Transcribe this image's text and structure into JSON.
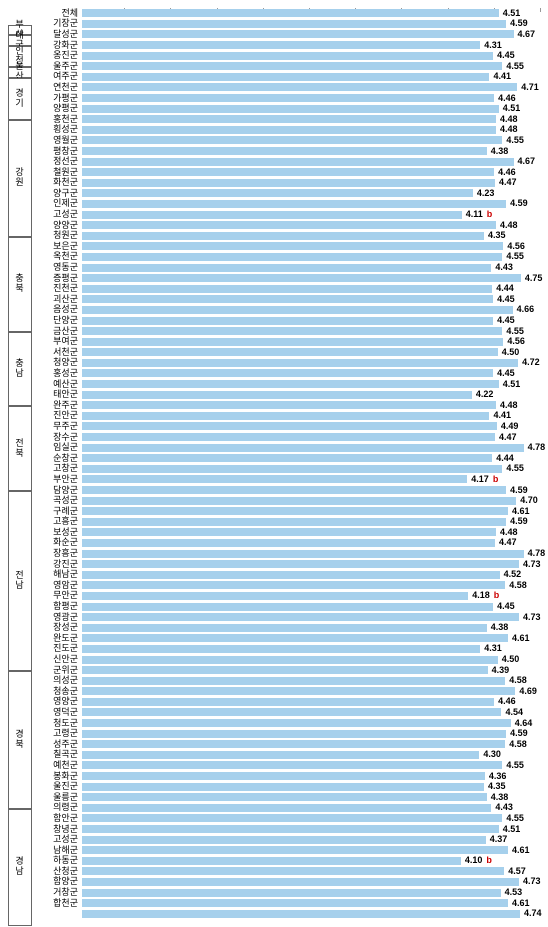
{
  "chart": {
    "type": "bar",
    "xmin": 0,
    "xmax": 5.0,
    "bar_color": "#a6d0ec",
    "value_color": "#000000",
    "marker_a_color": "#cc0000",
    "marker_b_color": "#cc0000",
    "background_color": "#ffffff",
    "groupbox_border": "#666666",
    "label_fontsize": 9,
    "value_fontsize": 9,
    "tick_positions": [
      0.5,
      1.0,
      1.5,
      2.0,
      2.5,
      3.0,
      3.5,
      4.0,
      4.5,
      5.0
    ],
    "groups": [
      {
        "name": "",
        "rows": [
          {
            "label": "전체",
            "value": 4.51
          }
        ]
      },
      {
        "name": "부 산",
        "rows": [
          {
            "label": "기장군",
            "value": 4.59
          }
        ]
      },
      {
        "name": "대 구",
        "rows": [
          {
            "label": "달성군",
            "value": 4.67
          }
        ]
      },
      {
        "name": "인 천",
        "rows": [
          {
            "label": "강화군",
            "value": 4.31
          },
          {
            "label": "옹진군",
            "value": 4.45
          }
        ]
      },
      {
        "name": "울 산",
        "rows": [
          {
            "label": "울주군",
            "value": 4.55
          }
        ]
      },
      {
        "name": "경 기",
        "rows": [
          {
            "label": "여주군",
            "value": 4.41
          },
          {
            "label": "연천군",
            "value": 4.71
          },
          {
            "label": "가평군",
            "value": 4.46
          },
          {
            "label": "양평군",
            "value": 4.51
          }
        ]
      },
      {
        "name": "강 원",
        "rows": [
          {
            "label": "홍천군",
            "value": 4.48
          },
          {
            "label": "횡성군",
            "value": 4.48
          },
          {
            "label": "영월군",
            "value": 4.55
          },
          {
            "label": "평창군",
            "value": 4.38
          },
          {
            "label": "정선군",
            "value": 4.67
          },
          {
            "label": "철원군",
            "value": 4.46
          },
          {
            "label": "화천군",
            "value": 4.47
          },
          {
            "label": "양구군",
            "value": 4.23
          },
          {
            "label": "인제군",
            "value": 4.59
          },
          {
            "label": "고성군",
            "value": 4.11,
            "marker": "b"
          },
          {
            "label": "양양군",
            "value": 4.48
          }
        ]
      },
      {
        "name": "충 북",
        "rows": [
          {
            "label": "청원군",
            "value": 4.35
          },
          {
            "label": "보은군",
            "value": 4.56
          },
          {
            "label": "옥천군",
            "value": 4.55
          },
          {
            "label": "영동군",
            "value": 4.43
          },
          {
            "label": "증평군",
            "value": 4.75
          },
          {
            "label": "진천군",
            "value": 4.44
          },
          {
            "label": "괴산군",
            "value": 4.45
          },
          {
            "label": "음성군",
            "value": 4.66
          },
          {
            "label": "단양군",
            "value": 4.45
          }
        ]
      },
      {
        "name": "충 남",
        "rows": [
          {
            "label": "금산군",
            "value": 4.55
          },
          {
            "label": "부여군",
            "value": 4.56
          },
          {
            "label": "서천군",
            "value": 4.5
          },
          {
            "label": "청양군",
            "value": 4.72
          },
          {
            "label": "홍성군",
            "value": 4.45
          },
          {
            "label": "예산군",
            "value": 4.51
          },
          {
            "label": "태안군",
            "value": 4.22
          }
        ]
      },
      {
        "name": "전 북",
        "rows": [
          {
            "label": "완주군",
            "value": 4.48
          },
          {
            "label": "진안군",
            "value": 4.41
          },
          {
            "label": "무주군",
            "value": 4.49
          },
          {
            "label": "장수군",
            "value": 4.47
          },
          {
            "label": "임실군",
            "value": 4.78,
            "marker": "a"
          },
          {
            "label": "순창군",
            "value": 4.44
          },
          {
            "label": "고창군",
            "value": 4.55
          },
          {
            "label": "부안군",
            "value": 4.17,
            "marker": "b"
          }
        ]
      },
      {
        "name": "전 남",
        "rows": [
          {
            "label": "담양군",
            "value": 4.59
          },
          {
            "label": "곡성군",
            "value": 4.7
          },
          {
            "label": "구례군",
            "value": 4.61
          },
          {
            "label": "고흥군",
            "value": 4.59
          },
          {
            "label": "보성군",
            "value": 4.48
          },
          {
            "label": "화순군",
            "value": 4.47
          },
          {
            "label": "장흥군",
            "value": 4.78,
            "marker": "a"
          },
          {
            "label": "강진군",
            "value": 4.73
          },
          {
            "label": "해남군",
            "value": 4.52
          },
          {
            "label": "영암군",
            "value": 4.58
          },
          {
            "label": "무안군",
            "value": 4.18,
            "marker": "b"
          },
          {
            "label": "함평군",
            "value": 4.45
          },
          {
            "label": "영광군",
            "value": 4.73
          },
          {
            "label": "장성군",
            "value": 4.38
          },
          {
            "label": "완도군",
            "value": 4.61
          },
          {
            "label": "진도군",
            "value": 4.31
          },
          {
            "label": "신안군",
            "value": 4.5
          }
        ]
      },
      {
        "name": "경 북",
        "rows": [
          {
            "label": "군위군",
            "value": 4.39
          },
          {
            "label": "의성군",
            "value": 4.58
          },
          {
            "label": "청송군",
            "value": 4.69
          },
          {
            "label": "영양군",
            "value": 4.46
          },
          {
            "label": "영덕군",
            "value": 4.54
          },
          {
            "label": "청도군",
            "value": 4.64
          },
          {
            "label": "고령군",
            "value": 4.59
          },
          {
            "label": "성주군",
            "value": 4.58
          },
          {
            "label": "칠곡군",
            "value": 4.3
          },
          {
            "label": "예천군",
            "value": 4.55
          },
          {
            "label": "봉화군",
            "value": 4.36
          },
          {
            "label": "울진군",
            "value": 4.35
          },
          {
            "label": "울릉군",
            "value": 4.38
          }
        ]
      },
      {
        "name": "경 남",
        "rows": [
          {
            "label": "의령군",
            "value": 4.43
          },
          {
            "label": "함안군",
            "value": 4.55
          },
          {
            "label": "창녕군",
            "value": 4.51
          },
          {
            "label": "고성군",
            "value": 4.37
          },
          {
            "label": "남해군",
            "value": 4.61
          },
          {
            "label": "하동군",
            "value": 4.1,
            "marker": "b"
          },
          {
            "label": "산청군",
            "value": 4.57
          },
          {
            "label": "함양군",
            "value": 4.73
          },
          {
            "label": "거창군",
            "value": 4.53
          },
          {
            "label": "합천군",
            "value": 4.61
          },
          {
            "label": "",
            "value": 4.74
          }
        ]
      }
    ]
  }
}
